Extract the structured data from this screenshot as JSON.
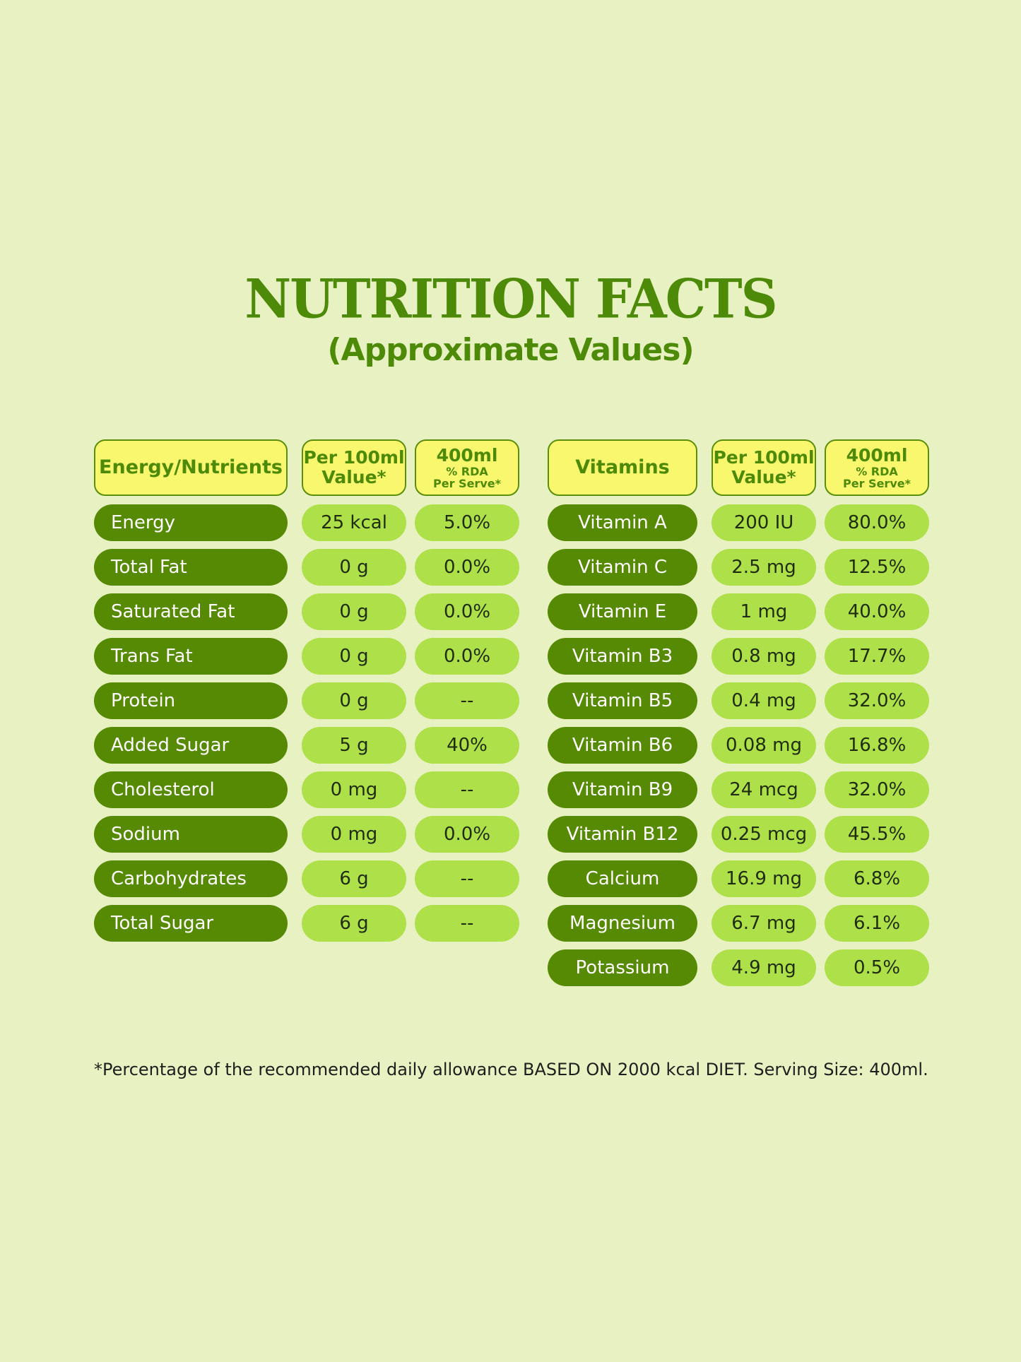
{
  "title": "NUTRITION FACTS",
  "subtitle": "(Approximate Values)",
  "left_table": {
    "headers": {
      "col1": "Energy/Nutrients",
      "col2_line1": "Per 100ml",
      "col2_line2": "Value*",
      "col3_line1": "400ml",
      "col3_line2": "% RDA",
      "col3_line3": "Per Serve*"
    },
    "rows": [
      {
        "name": "Energy",
        "per100": "25 kcal",
        "rda": "5.0%"
      },
      {
        "name": "Total Fat",
        "per100": "0 g",
        "rda": "0.0%"
      },
      {
        "name": "Saturated Fat",
        "per100": "0 g",
        "rda": "0.0%"
      },
      {
        "name": "Trans Fat",
        "per100": "0 g",
        "rda": "0.0%"
      },
      {
        "name": "Protein",
        "per100": "0 g",
        "rda": "--"
      },
      {
        "name": "Added Sugar",
        "per100": "5 g",
        "rda": "40%"
      },
      {
        "name": "Cholesterol",
        "per100": "0 mg",
        "rda": "--"
      },
      {
        "name": "Sodium",
        "per100": "0 mg",
        "rda": "0.0%"
      },
      {
        "name": "Carbohydrates",
        "per100": "6 g",
        "rda": "--"
      },
      {
        "name": "Total Sugar",
        "per100": "6 g",
        "rda": "--"
      }
    ]
  },
  "right_table": {
    "headers": {
      "col1": "Vitamins",
      "col2_line1": "Per 100ml",
      "col2_line2": "Value*",
      "col3_line1": "400ml",
      "col3_line2": "% RDA",
      "col3_line3": "Per Serve*"
    },
    "rows": [
      {
        "name": "Vitamin A",
        "per100": "200 IU",
        "rda": "80.0%"
      },
      {
        "name": "Vitamin C",
        "per100": "2.5 mg",
        "rda": "12.5%"
      },
      {
        "name": "Vitamin E",
        "per100": "1 mg",
        "rda": "40.0%"
      },
      {
        "name": "Vitamin B3",
        "per100": "0.8 mg",
        "rda": "17.7%"
      },
      {
        "name": "Vitamin B5",
        "per100": "0.4 mg",
        "rda": "32.0%"
      },
      {
        "name": "Vitamin B6",
        "per100": "0.08 mg",
        "rda": "16.8%"
      },
      {
        "name": "Vitamin B9",
        "per100": "24 mcg",
        "rda": "32.0%"
      },
      {
        "name": "Vitamin B12",
        "per100": "0.25 mcg",
        "rda": "45.5%"
      },
      {
        "name": "Calcium",
        "per100": "16.9 mg",
        "rda": "6.8%"
      },
      {
        "name": "Magnesium",
        "per100": "6.7 mg",
        "rda": "6.1%"
      },
      {
        "name": "Potassium",
        "per100": "4.9 mg",
        "rda": "0.5%"
      }
    ]
  },
  "footnote": "*Percentage of the recommended daily allowance BASED ON 2000 kcal DIET. Serving Size: 400ml.",
  "colors": {
    "background": "#e8f1c2",
    "title": "#4c8a08",
    "header_fill": "#f8f76e",
    "name_pill": "#558a02",
    "value_pill": "#aee04a"
  }
}
